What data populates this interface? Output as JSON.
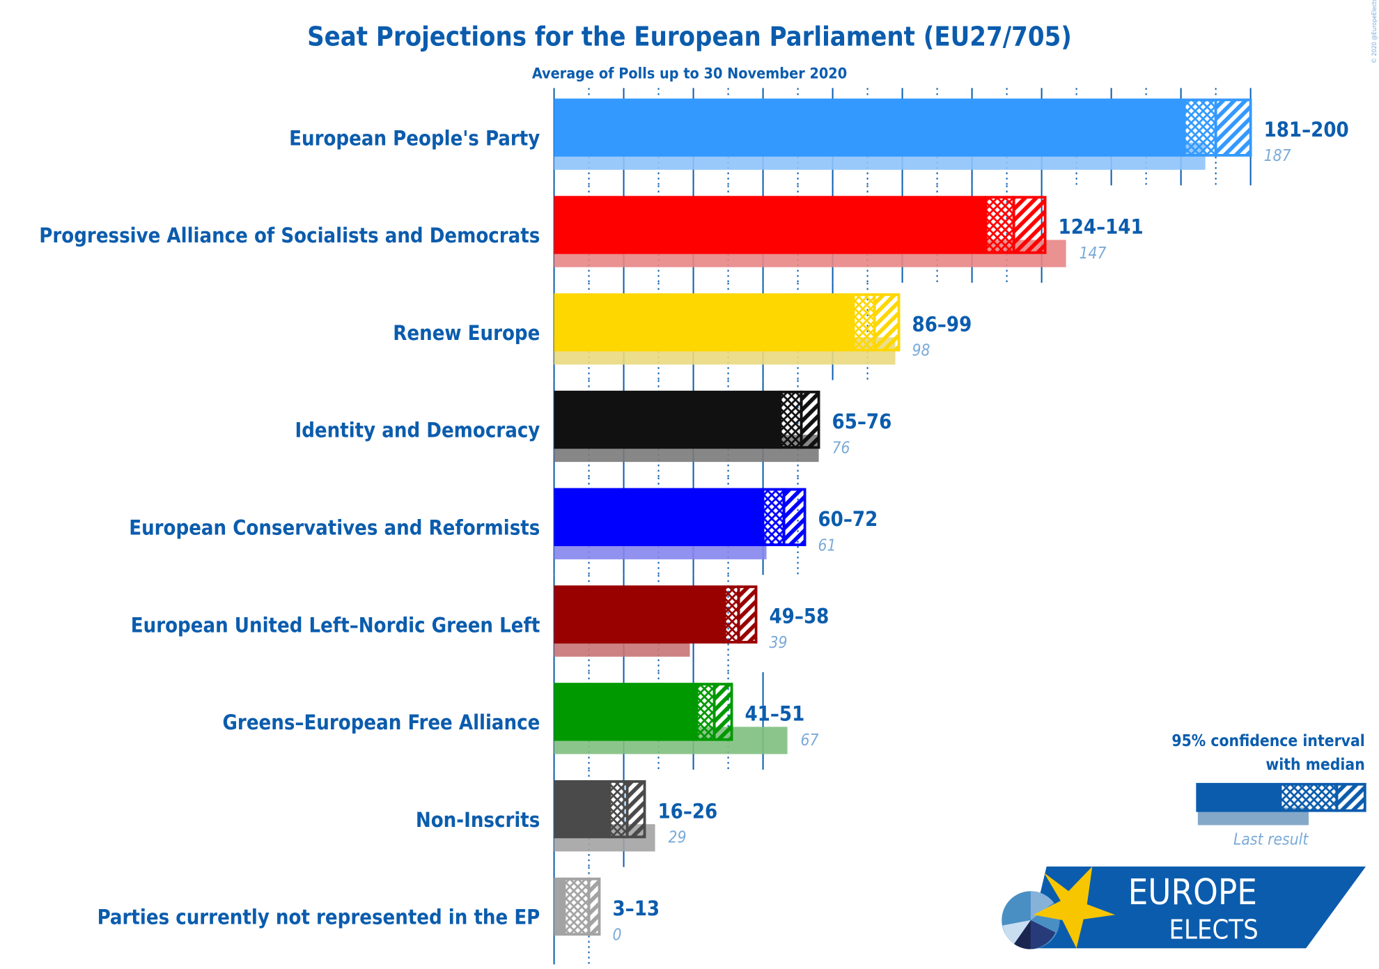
{
  "chart_data": {
    "type": "bar",
    "orientation": "horizontal",
    "title": "Seat Projections for the European Parliament (EU27/705)",
    "subtitle": "Average of Polls up to 30 November 2020",
    "xlim": [
      0,
      200
    ],
    "grid": true,
    "legend": {
      "position": "bottom-right",
      "line1": "95% confidence interval",
      "line2": "with median",
      "last_label": "Last result"
    },
    "categories": [
      "European People's Party",
      "Progressive Alliance of Socialists and Democrats",
      "Renew Europe",
      "Identity and Democracy",
      "European Conservatives and Reformists",
      "European United Left–Nordic Green Left",
      "Greens–European Free Alliance",
      "Non-Inscrits",
      "Parties currently not represented in the EP"
    ],
    "series": [
      {
        "name": "95% confidence interval",
        "low": [
          181,
          124,
          86,
          65,
          60,
          49,
          41,
          16,
          3
        ],
        "high": [
          200,
          141,
          99,
          76,
          72,
          58,
          51,
          26,
          13
        ],
        "median": [
          190,
          132,
          92,
          71,
          66,
          53,
          46,
          21,
          10
        ],
        "labels": [
          "181–200",
          "124–141",
          "86–99",
          "65–76",
          "60–72",
          "49–58",
          "41–51",
          "16–26",
          "3–13"
        ]
      },
      {
        "name": "Last result",
        "values": [
          187,
          147,
          98,
          76,
          61,
          39,
          67,
          29,
          0
        ],
        "labels": [
          "187",
          "147",
          "98",
          "76",
          "61",
          "39",
          "67",
          "29",
          "0"
        ]
      }
    ],
    "colors": [
      "#3399ff",
      "#ff0000",
      "#ffd700",
      "#111111",
      "#0000ff",
      "#990000",
      "#009900",
      "#4a4a4a",
      "#a3a3a3"
    ],
    "last_colors": [
      "#8ec3fb",
      "#e88585",
      "#e9d97e",
      "#7a7a7a",
      "#8585ee",
      "#c77474",
      "#80bf80",
      "#a3a3a3",
      "#a3a3a3"
    ]
  },
  "logo": {
    "line1": "EUROPE",
    "line2": "ELECTS",
    "brand_color": "#0b5cad",
    "star_color": "#f7c600"
  },
  "copyright": "© 2020 @EuropeElects"
}
